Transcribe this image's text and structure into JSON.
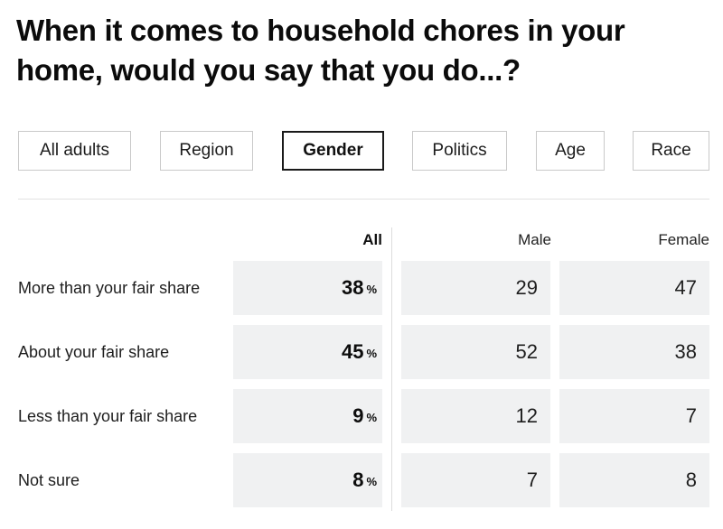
{
  "title": "When it comes to household chores in your home, would you say that you do...?",
  "tabs": [
    {
      "label": "All adults",
      "active": false
    },
    {
      "label": "Region",
      "active": false
    },
    {
      "label": "Gender",
      "active": true
    },
    {
      "label": "Politics",
      "active": false
    },
    {
      "label": "Age",
      "active": false
    },
    {
      "label": "Race",
      "active": false
    }
  ],
  "table": {
    "columns": [
      "All",
      "Male",
      "Female"
    ],
    "percent_sign": "%",
    "rows": [
      {
        "label": "More than your fair share",
        "all": "38",
        "male": "29",
        "female": "47"
      },
      {
        "label": "About your fair share",
        "all": "45",
        "male": "52",
        "female": "38"
      },
      {
        "label": "Less than your fair share",
        "all": "9",
        "male": "12",
        "female": "7"
      },
      {
        "label": "Not sure",
        "all": "8",
        "male": "7",
        "female": "8"
      }
    ]
  },
  "colors": {
    "cell_background": "#f0f1f2",
    "border": "#c9c9c9",
    "active_border": "#1a1a1a"
  }
}
